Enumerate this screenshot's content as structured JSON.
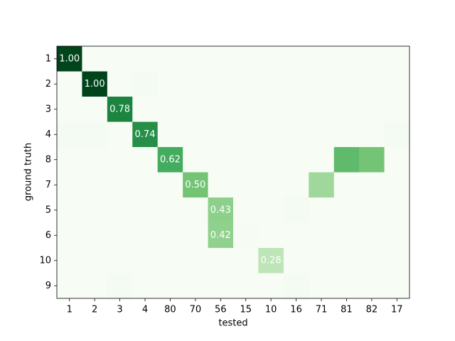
{
  "chart_data": {
    "type": "heatmap",
    "x_label": "tested",
    "y_label": "ground truth",
    "x_categories": [
      "1",
      "2",
      "3",
      "4",
      "80",
      "70",
      "56",
      "15",
      "10",
      "16",
      "71",
      "81",
      "82",
      "17"
    ],
    "y_categories": [
      "1",
      "2",
      "3",
      "4",
      "8",
      "7",
      "5",
      "6",
      "10",
      "9"
    ],
    "colormap": "Greens",
    "vmin": 0,
    "vmax": 1,
    "values": [
      [
        1,
        0,
        0,
        0,
        0,
        0,
        0,
        0,
        0,
        0,
        0,
        0,
        0,
        0
      ],
      [
        0,
        1,
        0,
        0.02,
        0,
        0,
        0,
        0,
        0,
        0,
        0,
        0,
        0,
        0
      ],
      [
        0,
        0,
        0.78,
        0,
        0,
        0,
        0,
        0,
        0,
        0,
        0,
        0,
        0,
        0
      ],
      [
        0.02,
        0.02,
        0,
        0.74,
        0,
        0,
        0,
        0,
        0,
        0,
        0,
        0,
        0,
        0.02
      ],
      [
        0,
        0,
        0,
        0,
        0.62,
        0,
        0,
        0,
        0,
        0,
        0,
        0.55,
        0.5,
        0
      ],
      [
        0,
        0,
        0,
        0,
        0,
        0.5,
        0,
        0,
        0,
        0,
        0.38,
        0,
        0,
        0
      ],
      [
        0,
        0,
        0,
        0,
        0,
        0,
        0.43,
        0,
        0,
        0.02,
        0,
        0,
        0,
        0
      ],
      [
        0,
        0,
        0,
        0,
        0,
        0,
        0.42,
        0.01,
        0,
        0,
        0,
        0,
        0,
        0
      ],
      [
        0,
        0,
        0,
        0,
        0,
        0,
        0,
        0,
        0.28,
        0,
        0,
        0,
        0,
        0
      ],
      [
        0,
        0,
        0.02,
        0,
        0,
        0,
        0,
        0,
        0,
        0.02,
        0,
        0,
        0,
        0
      ]
    ],
    "value_labels": [
      [
        "1.00",
        null,
        null,
        null,
        null,
        null,
        null,
        null,
        null,
        null,
        null,
        null,
        null,
        null
      ],
      [
        null,
        "1.00",
        null,
        null,
        null,
        null,
        null,
        null,
        null,
        null,
        null,
        null,
        null,
        null
      ],
      [
        null,
        null,
        "0.78",
        null,
        null,
        null,
        null,
        null,
        null,
        null,
        null,
        null,
        null,
        null
      ],
      [
        null,
        null,
        null,
        "0.74",
        null,
        null,
        null,
        null,
        null,
        null,
        null,
        null,
        null,
        null
      ],
      [
        null,
        null,
        null,
        null,
        "0.62",
        null,
        null,
        null,
        null,
        null,
        null,
        null,
        null,
        null
      ],
      [
        null,
        null,
        null,
        null,
        null,
        "0.50",
        null,
        null,
        null,
        null,
        null,
        null,
        null,
        null
      ],
      [
        null,
        null,
        null,
        null,
        null,
        null,
        "0.43",
        null,
        null,
        null,
        null,
        null,
        null,
        null
      ],
      [
        null,
        null,
        null,
        null,
        null,
        null,
        "0.42",
        null,
        null,
        null,
        null,
        null,
        null,
        null
      ],
      [
        null,
        null,
        null,
        null,
        null,
        null,
        null,
        null,
        "0.28",
        null,
        null,
        null,
        null,
        null
      ],
      [
        null,
        null,
        null,
        null,
        null,
        null,
        null,
        null,
        null,
        null,
        null,
        null,
        null,
        null
      ]
    ]
  }
}
